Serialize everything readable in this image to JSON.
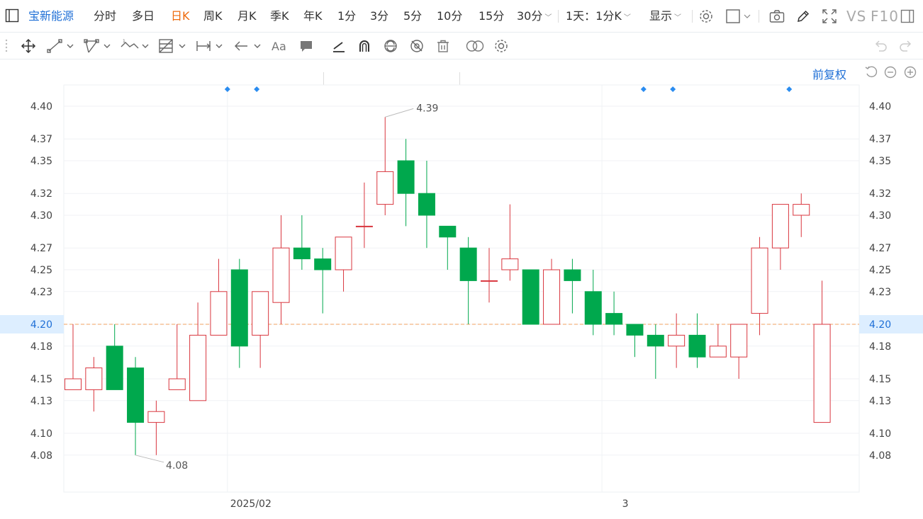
{
  "toolbar": {
    "stock_name": "宝新能源",
    "periods": [
      "分时",
      "多日",
      "日K",
      "周K",
      "月K",
      "季K",
      "年K",
      "1分",
      "3分",
      "5分",
      "10分",
      "15分"
    ],
    "active_period": "日K",
    "more_period": "30分",
    "interval_select": "1天：1分K",
    "display_select": "显示",
    "vs_label": "VS",
    "f10_label": "F10"
  },
  "chart_header": {
    "adjust_label": "前复权"
  },
  "colors": {
    "up": "#d9363e",
    "down": "#00a84d",
    "accent": "#1f6fd6",
    "active_tab": "#ee6a0c",
    "current_price_line": "#f0a060",
    "current_price_bg": "#ddeeff"
  },
  "chart_data": {
    "type": "candlestick",
    "ylim": [
      4.06,
      4.43
    ],
    "y_ticks": [
      "4.40",
      "4.37",
      "4.35",
      "4.32",
      "4.30",
      "4.27",
      "4.25",
      "4.23",
      "4.20",
      "4.18",
      "4.15",
      "4.13",
      "4.10",
      "4.08"
    ],
    "x_labels": [
      {
        "label": "2025/02",
        "index": 8
      },
      {
        "label": "3",
        "index": 26
      }
    ],
    "current_price": "4.20",
    "high_marker": {
      "label": "4.39",
      "index": 15
    },
    "low_marker": {
      "label": "4.08",
      "index": 3
    },
    "event_markers_at": [
      8,
      9,
      28,
      29,
      35
    ],
    "candles": [
      {
        "o": 4.14,
        "h": 4.2,
        "l": 4.14,
        "c": 4.15
      },
      {
        "o": 4.14,
        "h": 4.17,
        "l": 4.12,
        "c": 4.16
      },
      {
        "o": 4.18,
        "h": 4.2,
        "l": 4.14,
        "c": 4.14
      },
      {
        "o": 4.16,
        "h": 4.17,
        "l": 4.08,
        "c": 4.11
      },
      {
        "o": 4.11,
        "h": 4.13,
        "l": 4.08,
        "c": 4.12
      },
      {
        "o": 4.14,
        "h": 4.2,
        "l": 4.14,
        "c": 4.15
      },
      {
        "o": 4.13,
        "h": 4.22,
        "l": 4.13,
        "c": 4.19
      },
      {
        "o": 4.19,
        "h": 4.26,
        "l": 4.19,
        "c": 4.23
      },
      {
        "o": 4.25,
        "h": 4.26,
        "l": 4.16,
        "c": 4.18
      },
      {
        "o": 4.19,
        "h": 4.23,
        "l": 4.16,
        "c": 4.23
      },
      {
        "o": 4.22,
        "h": 4.3,
        "l": 4.2,
        "c": 4.27
      },
      {
        "o": 4.27,
        "h": 4.3,
        "l": 4.25,
        "c": 4.26
      },
      {
        "o": 4.26,
        "h": 4.27,
        "l": 4.21,
        "c": 4.25
      },
      {
        "o": 4.25,
        "h": 4.28,
        "l": 4.23,
        "c": 4.28
      },
      {
        "o": 4.29,
        "h": 4.33,
        "l": 4.27,
        "c": 4.29
      },
      {
        "o": 4.31,
        "h": 4.39,
        "l": 4.3,
        "c": 4.34
      },
      {
        "o": 4.35,
        "h": 4.37,
        "l": 4.29,
        "c": 4.32
      },
      {
        "o": 4.32,
        "h": 4.35,
        "l": 4.27,
        "c": 4.3
      },
      {
        "o": 4.29,
        "h": 4.29,
        "l": 4.25,
        "c": 4.28
      },
      {
        "o": 4.27,
        "h": 4.28,
        "l": 4.2,
        "c": 4.24
      },
      {
        "o": 4.24,
        "h": 4.27,
        "l": 4.22,
        "c": 4.24
      },
      {
        "o": 4.25,
        "h": 4.31,
        "l": 4.24,
        "c": 4.26
      },
      {
        "o": 4.25,
        "h": 4.25,
        "l": 4.2,
        "c": 4.2
      },
      {
        "o": 4.2,
        "h": 4.26,
        "l": 4.2,
        "c": 4.25
      },
      {
        "o": 4.25,
        "h": 4.26,
        "l": 4.21,
        "c": 4.24
      },
      {
        "o": 4.23,
        "h": 4.25,
        "l": 4.19,
        "c": 4.2
      },
      {
        "o": 4.21,
        "h": 4.23,
        "l": 4.19,
        "c": 4.2
      },
      {
        "o": 4.2,
        "h": 4.2,
        "l": 4.17,
        "c": 4.19
      },
      {
        "o": 4.19,
        "h": 4.2,
        "l": 4.15,
        "c": 4.18
      },
      {
        "o": 4.18,
        "h": 4.21,
        "l": 4.16,
        "c": 4.19
      },
      {
        "o": 4.19,
        "h": 4.21,
        "l": 4.16,
        "c": 4.17
      },
      {
        "o": 4.17,
        "h": 4.2,
        "l": 4.17,
        "c": 4.18
      },
      {
        "o": 4.17,
        "h": 4.2,
        "l": 4.15,
        "c": 4.2
      },
      {
        "o": 4.21,
        "h": 4.28,
        "l": 4.19,
        "c": 4.27
      },
      {
        "o": 4.27,
        "h": 4.31,
        "l": 4.25,
        "c": 4.31
      },
      {
        "o": 4.3,
        "h": 4.32,
        "l": 4.28,
        "c": 4.31
      },
      {
        "o": 4.11,
        "h": 4.24,
        "l": 4.11,
        "c": 4.2
      }
    ]
  }
}
